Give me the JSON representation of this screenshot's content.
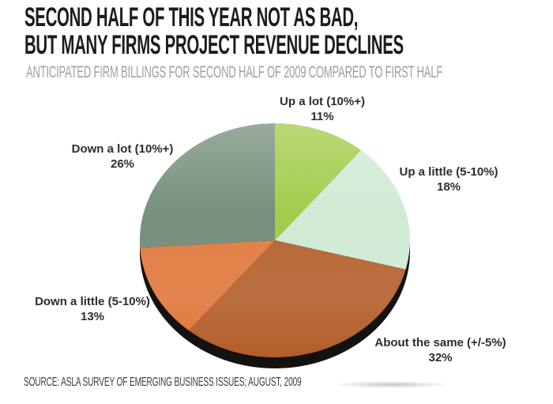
{
  "header": {
    "title_line1": "SECOND HALF OF THIS YEAR NOT AS BAD,",
    "title_line2": "BUT MANY FIRMS PROJECT REVENUE DECLINES",
    "subtitle": "ANTICIPATED FIRM BILLINGS FOR SECOND HALF OF 2009 COMPARED TO FIRST HALF"
  },
  "source_note": "SOURCE: ASLA SURVEY OF EMERGING BUSINESS ISSUES; AUGUST, 2009",
  "chart_data": {
    "type": "pie",
    "style": "3d-tilted",
    "title": "SECOND HALF OF THIS YEAR NOT AS BAD, BUT MANY FIRMS PROJECT REVENUE DECLINES",
    "subtitle": "ANTICIPATED FIRM BILLINGS FOR SECOND HALF OF 2009 COMPARED TO FIRST HALF",
    "start_angle_deg": 0,
    "direction": "clockwise",
    "legend_position": "labels-around-pie",
    "depth_color": "#141210",
    "slices": [
      {
        "id": "up-a-lot",
        "label": "Up a lot (10%+)",
        "value": 11,
        "pct_label": "11%",
        "color": "#9cc83c"
      },
      {
        "id": "up-a-little",
        "label": "Up a little (5-10%)",
        "value": 18,
        "pct_label": "18%",
        "color": "#cde9d2"
      },
      {
        "id": "about-the-same",
        "label": "About the same (+/-5%)",
        "value": 32,
        "pct_label": "32%",
        "color": "#b35e2a"
      },
      {
        "id": "down-a-little",
        "label": "Down a little (5-10%)",
        "value": 13,
        "pct_label": "13%",
        "color": "#e0763a"
      },
      {
        "id": "down-a-lot",
        "label": "Down a lot (10%+)",
        "value": 26,
        "pct_label": "26%",
        "color": "#6d8773"
      }
    ]
  }
}
